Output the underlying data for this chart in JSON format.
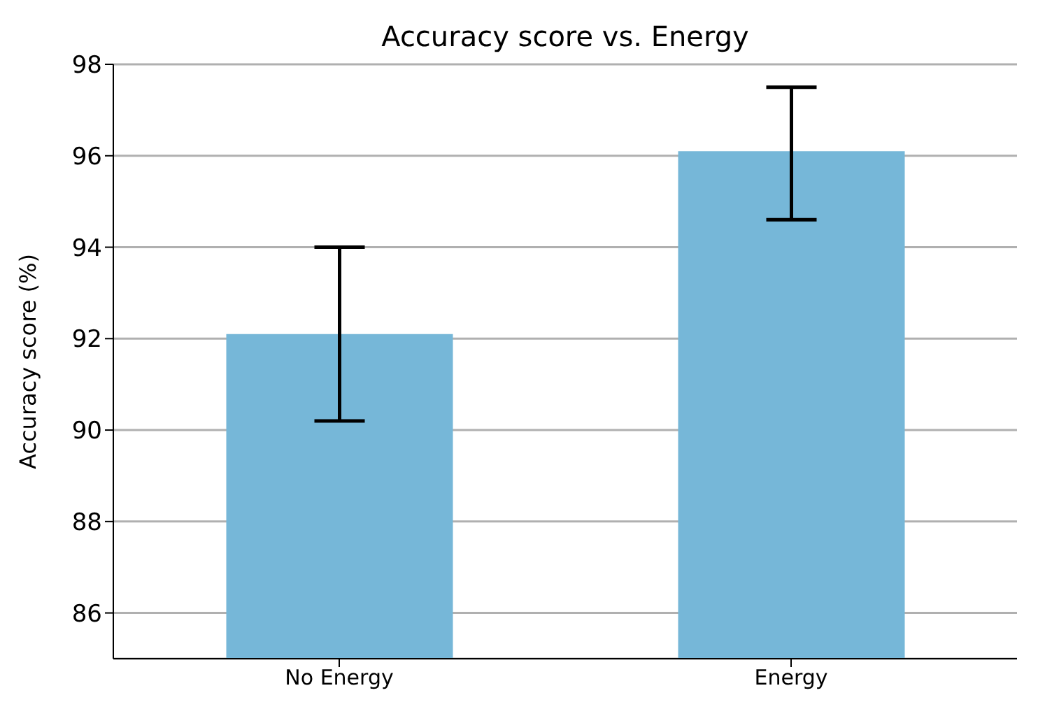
{
  "chart_data": {
    "type": "bar",
    "title": "Accuracy score vs. Energy",
    "ylabel": "Accuracy score (%)",
    "categories": [
      "No Energy",
      "Energy"
    ],
    "values": [
      92.1,
      96.1
    ],
    "errors": [
      [
        90.2,
        94.0
      ],
      [
        94.6,
        97.5
      ]
    ],
    "color": "#76b7d8",
    "ylim": [
      85,
      98
    ],
    "yticks": [
      86,
      88,
      90,
      92,
      94,
      96,
      98
    ],
    "grid": "y"
  }
}
